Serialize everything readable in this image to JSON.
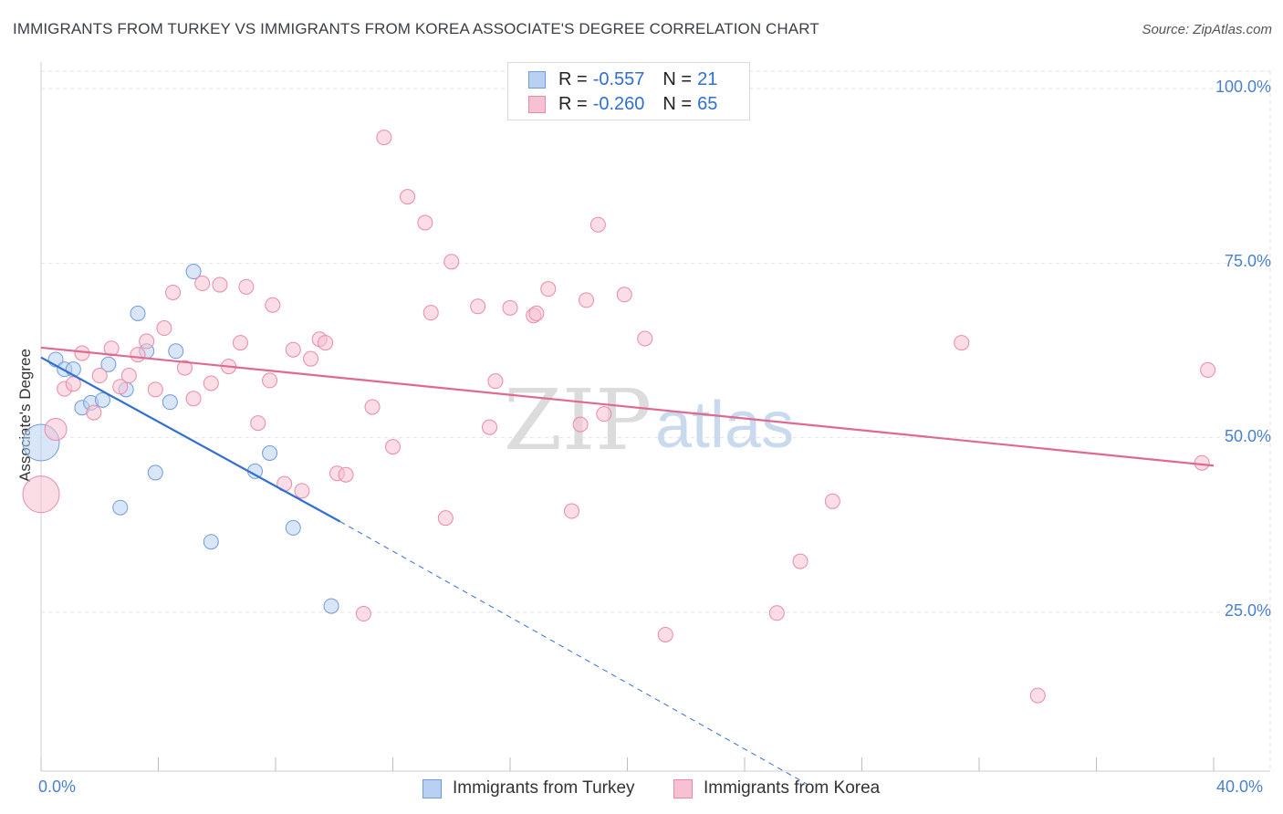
{
  "header": {
    "title": "IMMIGRANTS FROM TURKEY VS IMMIGRANTS FROM KOREA ASSOCIATE'S DEGREE CORRELATION CHART",
    "source": "Source: ZipAtlas.com"
  },
  "legend": {
    "turkey": {
      "r_label": "R =",
      "r_value": "-0.557",
      "n_label": "N =",
      "n_value": "21"
    },
    "korea": {
      "r_label": "R =",
      "r_value": "-0.260",
      "n_label": "N =",
      "n_value": "65"
    }
  },
  "bottom_legend": {
    "turkey": "Immigrants from Turkey",
    "korea": "Immigrants from Korea"
  },
  "watermark": {
    "zip": "ZIP",
    "atlas": "atlas"
  },
  "colors": {
    "turkey_fill": "#b8d1f3",
    "turkey_stroke": "#6f9bd8",
    "turkey_line": "#2f6fd0",
    "korea_fill": "#f7c1d2",
    "korea_stroke": "#e88aa7",
    "korea_line": "#e0698f",
    "grid": "#e2e2e2",
    "tick_text": "#4a7fd0"
  },
  "chart_data": {
    "type": "scatter",
    "title": "IMMIGRANTS FROM TURKEY VS IMMIGRANTS FROM KOREA ASSOCIATE'S DEGREE CORRELATION CHART",
    "xlabel": "",
    "ylabel": "Associate's Degree",
    "xlim": [
      0,
      40
    ],
    "ylim": [
      0,
      105
    ],
    "x_tick_labels": [
      "0.0%",
      "40.0%"
    ],
    "y_ticks": [
      25,
      50,
      75,
      100
    ],
    "y_tick_labels": [
      "25.0%",
      "50.0%",
      "75.0%",
      "100.0%"
    ],
    "grid": true,
    "series": [
      {
        "name": "Immigrants from Turkey",
        "points": [
          [
            0.0,
            49.3,
            3
          ],
          [
            0.5,
            61.2,
            1
          ],
          [
            0.8,
            59.8,
            1
          ],
          [
            1.1,
            59.8,
            1
          ],
          [
            1.4,
            54.3,
            1
          ],
          [
            1.7,
            55.0,
            1
          ],
          [
            2.1,
            55.4,
            1
          ],
          [
            2.3,
            60.5,
            1
          ],
          [
            2.9,
            56.9,
            1
          ],
          [
            3.3,
            67.8,
            1
          ],
          [
            3.6,
            62.4,
            1
          ],
          [
            3.9,
            45.0,
            1
          ],
          [
            4.4,
            55.1,
            1
          ],
          [
            4.6,
            62.4,
            1
          ],
          [
            5.2,
            73.8,
            1
          ],
          [
            2.7,
            40.0,
            1
          ],
          [
            5.8,
            35.1,
            1
          ],
          [
            7.3,
            45.2,
            1
          ],
          [
            7.8,
            47.8,
            1
          ],
          [
            8.6,
            37.1,
            1
          ],
          [
            9.9,
            25.9,
            1
          ]
        ],
        "trend": {
          "x": [
            0.0,
            10.2
          ],
          "y": [
            61.5,
            38.0
          ]
        },
        "trend_extension": {
          "x": [
            10.2,
            26.3
          ],
          "y": [
            38.0,
            0.0
          ]
        }
      },
      {
        "name": "Immigrants from Korea",
        "points": [
          [
            0.0,
            41.9,
            3
          ],
          [
            0.5,
            51.2,
            2
          ],
          [
            0.8,
            57.0,
            1
          ],
          [
            1.1,
            57.7,
            1
          ],
          [
            1.4,
            62.1,
            1
          ],
          [
            1.8,
            53.6,
            1
          ],
          [
            2.0,
            58.9,
            1
          ],
          [
            2.4,
            62.8,
            1
          ],
          [
            2.7,
            57.3,
            1
          ],
          [
            3.0,
            58.9,
            1
          ],
          [
            3.3,
            61.9,
            1
          ],
          [
            3.6,
            63.8,
            1
          ],
          [
            3.9,
            56.9,
            1
          ],
          [
            4.2,
            65.7,
            1
          ],
          [
            4.5,
            70.8,
            1
          ],
          [
            4.9,
            60.0,
            1
          ],
          [
            5.2,
            55.6,
            1
          ],
          [
            5.5,
            72.1,
            1
          ],
          [
            5.8,
            57.8,
            1
          ],
          [
            6.1,
            71.9,
            1
          ],
          [
            6.4,
            60.2,
            1
          ],
          [
            6.8,
            63.6,
            1
          ],
          [
            7.0,
            71.6,
            1
          ],
          [
            7.4,
            52.1,
            1
          ],
          [
            7.8,
            58.2,
            1
          ],
          [
            7.9,
            69.0,
            1
          ],
          [
            8.3,
            43.4,
            1
          ],
          [
            8.6,
            62.6,
            1
          ],
          [
            8.9,
            42.4,
            1
          ],
          [
            9.2,
            61.3,
            1
          ],
          [
            9.5,
            64.1,
            1
          ],
          [
            9.7,
            63.6,
            1
          ],
          [
            10.1,
            44.9,
            1
          ],
          [
            10.4,
            44.7,
            1
          ],
          [
            11.0,
            24.8,
            1
          ],
          [
            11.3,
            54.4,
            1
          ],
          [
            11.7,
            93.0,
            1
          ],
          [
            12.0,
            48.7,
            1
          ],
          [
            12.5,
            84.5,
            1
          ],
          [
            13.1,
            80.8,
            1
          ],
          [
            13.3,
            67.9,
            1
          ],
          [
            13.8,
            38.5,
            1
          ],
          [
            14.0,
            75.2,
            1
          ],
          [
            14.9,
            68.8,
            1
          ],
          [
            15.3,
            51.5,
            1
          ],
          [
            15.5,
            58.1,
            1
          ],
          [
            16.0,
            68.6,
            1
          ],
          [
            16.8,
            67.5,
            1
          ],
          [
            16.9,
            67.8,
            1
          ],
          [
            17.3,
            71.3,
            1
          ],
          [
            18.1,
            39.5,
            1
          ],
          [
            18.4,
            51.9,
            1
          ],
          [
            18.6,
            69.7,
            1
          ],
          [
            19.0,
            80.5,
            1
          ],
          [
            19.2,
            53.4,
            1
          ],
          [
            19.9,
            70.5,
            1
          ],
          [
            20.6,
            64.2,
            1
          ],
          [
            21.3,
            21.8,
            1
          ],
          [
            25.1,
            24.9,
            1
          ],
          [
            25.9,
            32.3,
            1
          ],
          [
            27.0,
            40.9,
            1
          ],
          [
            31.4,
            63.6,
            1
          ],
          [
            34.0,
            13.1,
            1
          ],
          [
            39.6,
            46.4,
            1
          ],
          [
            39.8,
            59.7,
            1
          ]
        ],
        "trend": {
          "x": [
            0.0,
            40.0
          ],
          "y": [
            62.9,
            46.0
          ]
        }
      }
    ]
  }
}
